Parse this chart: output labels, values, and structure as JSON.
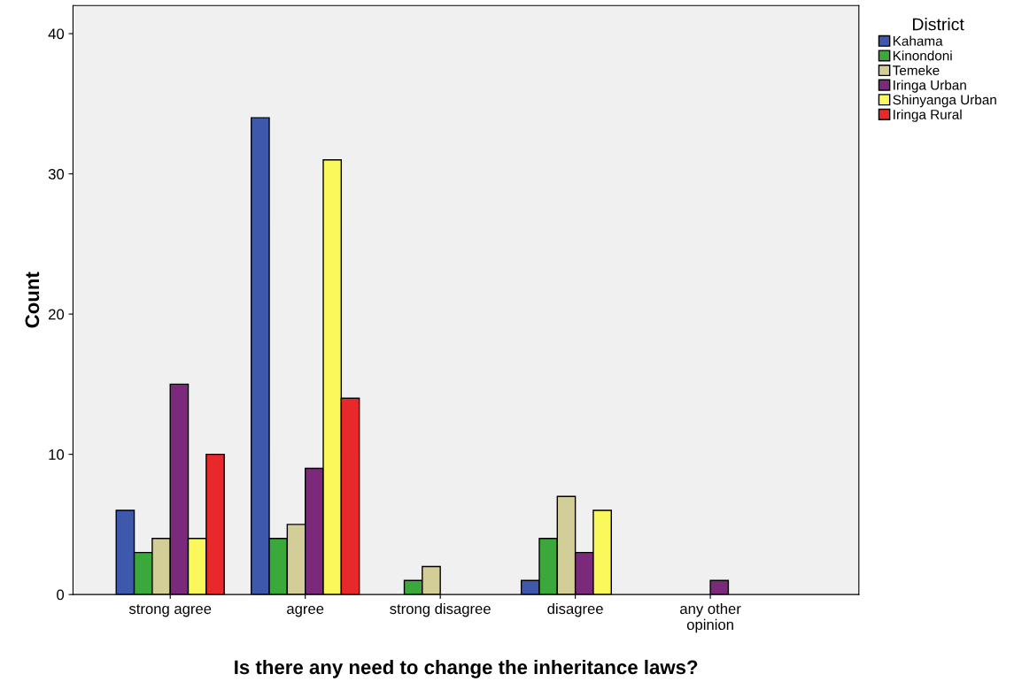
{
  "chart_data": {
    "type": "bar",
    "xlabel": "Is there any need to change the inheritance laws?",
    "ylabel": "Count",
    "legend_title": "District",
    "legend": "top right",
    "categories": [
      "strong agree",
      "agree",
      "strong disagree",
      "disagree",
      "any other\nopinion"
    ],
    "series": [
      {
        "name": "Kahama",
        "color": "#3e58ac",
        "values": [
          6,
          34,
          null,
          1,
          null
        ]
      },
      {
        "name": "Kinondoni",
        "color": "#3ba83b",
        "values": [
          3,
          4,
          1,
          4,
          null
        ]
      },
      {
        "name": "Temeke",
        "color": "#d3ce97",
        "values": [
          4,
          5,
          2,
          7,
          null
        ]
      },
      {
        "name": "Iringa Urban",
        "color": "#7b2a7b",
        "values": [
          15,
          9,
          null,
          3,
          1
        ]
      },
      {
        "name": "Shinyanga Urban",
        "color": "#fbf85b",
        "values": [
          4,
          31,
          null,
          6,
          null
        ]
      },
      {
        "name": "Iringa Rural",
        "color": "#e8282a",
        "values": [
          10,
          14,
          null,
          null,
          null
        ]
      }
    ],
    "ylim": [
      0,
      42
    ],
    "yticks": [
      0,
      10,
      20,
      30,
      40
    ],
    "grid": false
  }
}
